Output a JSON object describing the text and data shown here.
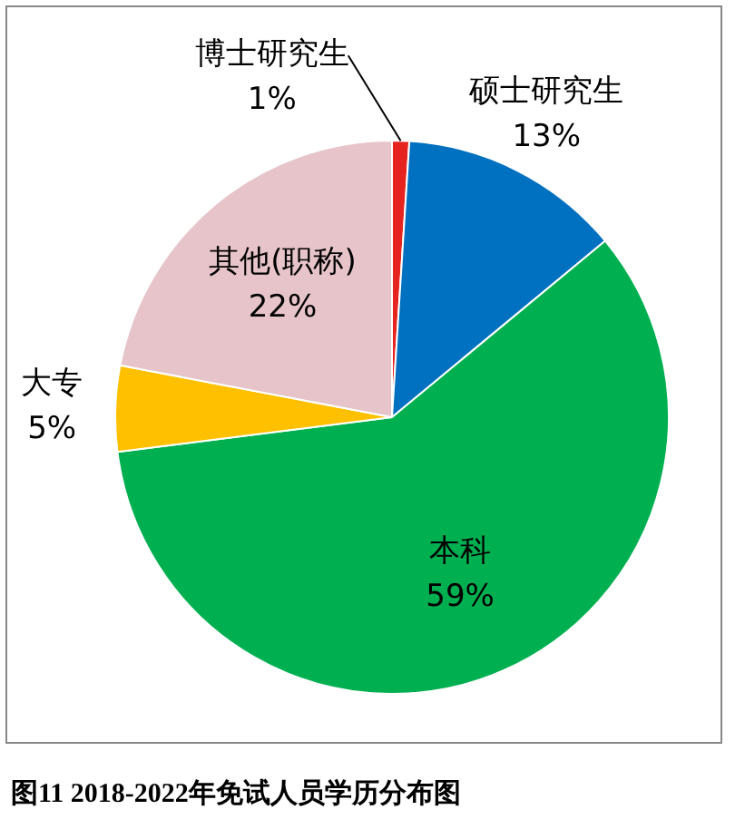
{
  "chart_data": {
    "type": "pie",
    "title": "图11  2018-2022年免试人员学历分布图",
    "categories": [
      "博士研究生",
      "硕士研究生",
      "本科",
      "大专",
      "其他(职称)"
    ],
    "values": [
      1,
      13,
      59,
      5,
      22
    ],
    "colors": [
      "#e52420",
      "#0070c0",
      "#00b050",
      "#ffc000",
      "#e6c4c9"
    ],
    "value_labels": [
      "1%",
      "13%",
      "59%",
      "5%",
      "22%"
    ],
    "legend": false
  }
}
